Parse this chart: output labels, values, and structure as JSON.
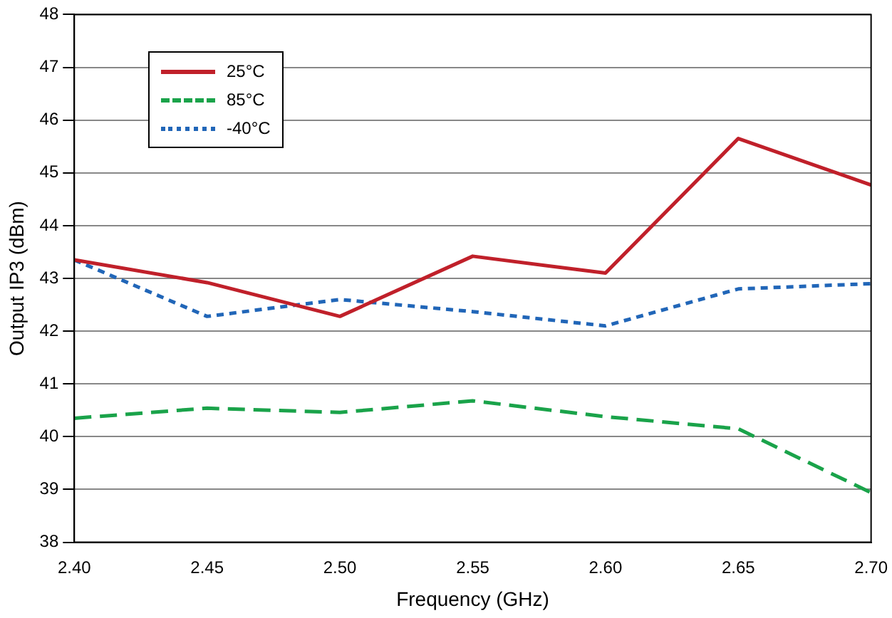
{
  "chart_data": {
    "type": "line",
    "xlabel": "Frequency (GHz)",
    "ylabel": "Output IP3 (dBm)",
    "x": [
      2.4,
      2.45,
      2.5,
      2.55,
      2.6,
      2.65,
      2.7
    ],
    "series": [
      {
        "name": "25°C",
        "color": "#c0202a",
        "line_style": "solid",
        "values": [
          43.35,
          42.92,
          42.28,
          43.42,
          43.1,
          45.65,
          44.77
        ]
      },
      {
        "name": "85°C",
        "color": "#1aa34a",
        "line_style": "dashed",
        "values": [
          40.35,
          40.54,
          40.46,
          40.68,
          40.38,
          40.15,
          38.94
        ]
      },
      {
        "name": "-40°C",
        "color": "#2166b8",
        "line_style": "dotted",
        "values": [
          43.35,
          42.28,
          42.6,
          42.37,
          42.1,
          42.8,
          42.9
        ]
      }
    ],
    "xlim": [
      2.4,
      2.7
    ],
    "xticks": [
      {
        "value": 2.4,
        "label": "2.40"
      },
      {
        "value": 2.45,
        "label": "2.45"
      },
      {
        "value": 2.5,
        "label": "2.50"
      },
      {
        "value": 2.55,
        "label": "2.55"
      },
      {
        "value": 2.6,
        "label": "2.60"
      },
      {
        "value": 2.65,
        "label": "2.65"
      },
      {
        "value": 2.7,
        "label": "2.70"
      }
    ],
    "ylim": [
      38,
      48
    ],
    "yticks": [
      38,
      39,
      40,
      41,
      42,
      43,
      44,
      45,
      46,
      47,
      48
    ],
    "grid": "y",
    "legend": "top left",
    "marker": "none"
  }
}
